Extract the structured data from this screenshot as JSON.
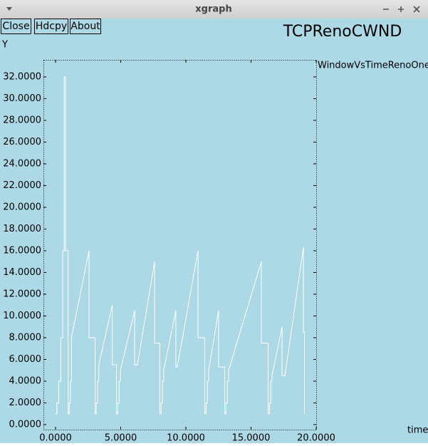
{
  "window": {
    "title": "xgraph",
    "buttons": [
      "Close",
      "Hdcpy",
      "About"
    ]
  },
  "chart_data": {
    "type": "line",
    "title": "TCPRenoCWND",
    "ylabel": "Y",
    "xlabel": "time",
    "xlim": [
      -0.93,
      20
    ],
    "ylim": [
      -0.46,
      33.57
    ],
    "grid": false,
    "legend": "right",
    "xticks": [
      {
        "value": 0,
        "label": "0.0000"
      },
      {
        "value": 5,
        "label": "5.0000"
      },
      {
        "value": 10,
        "label": "10.0000"
      },
      {
        "value": 15,
        "label": "15.0000"
      },
      {
        "value": 20,
        "label": "20.0000"
      }
    ],
    "yticks": [
      {
        "value": 0,
        "label": "0.0000"
      },
      {
        "value": 2,
        "label": "2.0000"
      },
      {
        "value": 4,
        "label": "4.0000"
      },
      {
        "value": 6,
        "label": "6.0000"
      },
      {
        "value": 8,
        "label": "8.0000"
      },
      {
        "value": 10,
        "label": "10.0000"
      },
      {
        "value": 12,
        "label": "12.0000"
      },
      {
        "value": 14,
        "label": "14.0000"
      },
      {
        "value": 16,
        "label": "16.0000"
      },
      {
        "value": 18,
        "label": "18.0000"
      },
      {
        "value": 20,
        "label": "20.0000"
      },
      {
        "value": 22,
        "label": "22.0000"
      },
      {
        "value": 24,
        "label": "24.0000"
      },
      {
        "value": 26,
        "label": "26.0000"
      },
      {
        "value": 28,
        "label": "28.0000"
      },
      {
        "value": 30,
        "label": "30.0000"
      },
      {
        "value": 32,
        "label": "32.0000"
      }
    ],
    "x": [
      0,
      0.1,
      0.1,
      0.25,
      0.25,
      0.4,
      0.4,
      0.55,
      0.55,
      0.66,
      0.66,
      0.77,
      0.77,
      0.96,
      0.96,
      1.05,
      1.05,
      1.14,
      1.14,
      1.22,
      1.22,
      2.57,
      2.57,
      3.03,
      3.03,
      3.12,
      3.12,
      3.22,
      3.22,
      3.32,
      3.32,
      4.35,
      4.35,
      4.68,
      4.68,
      4.78,
      4.78,
      4.88,
      4.88,
      4.98,
      4.98,
      6.07,
      6.07,
      6.28,
      7.6,
      7.6,
      8.0,
      8.0,
      8.1,
      8.1,
      8.2,
      8.2,
      8.3,
      8.3,
      9.23,
      9.23,
      9.34,
      10.93,
      10.93,
      11.45,
      11.45,
      11.55,
      11.55,
      11.65,
      11.65,
      11.75,
      11.75,
      12.51,
      12.51,
      12.98,
      12.98,
      13.08,
      13.08,
      13.18,
      13.18,
      13.28,
      13.28,
      15.79,
      15.79,
      16.31,
      16.31,
      16.41,
      16.41,
      16.51,
      16.51,
      16.61,
      16.61,
      17.38,
      17.38,
      17.6,
      19.02,
      19.02,
      19.1,
      19.1
    ],
    "series": [
      {
        "name": "WindowVsTimeRenoOne",
        "color": "#ffffff",
        "values": [
          1,
          1,
          2,
          2,
          4,
          4,
          8,
          8,
          16,
          16,
          32,
          32,
          16,
          16,
          1,
          1,
          2,
          2,
          4,
          4,
          8,
          16,
          8,
          8,
          1,
          1,
          2,
          2,
          4,
          4,
          5.5,
          11,
          5.5,
          5.5,
          1,
          1,
          2,
          2,
          4,
          4,
          5,
          10.5,
          5.5,
          5.5,
          15,
          7.5,
          7.5,
          1,
          1,
          2,
          2,
          4,
          4,
          5,
          10.5,
          5.3,
          5.3,
          16,
          8,
          8,
          1,
          1,
          2,
          2,
          4,
          4,
          5,
          10.5,
          5.3,
          5.3,
          1,
          1,
          2,
          2,
          4,
          4,
          5,
          15,
          7.5,
          7.5,
          1,
          1,
          2,
          2,
          4,
          4,
          4.5,
          9,
          4.5,
          4.5,
          16.3,
          8.5,
          8.5,
          1
        ]
      }
    ]
  }
}
